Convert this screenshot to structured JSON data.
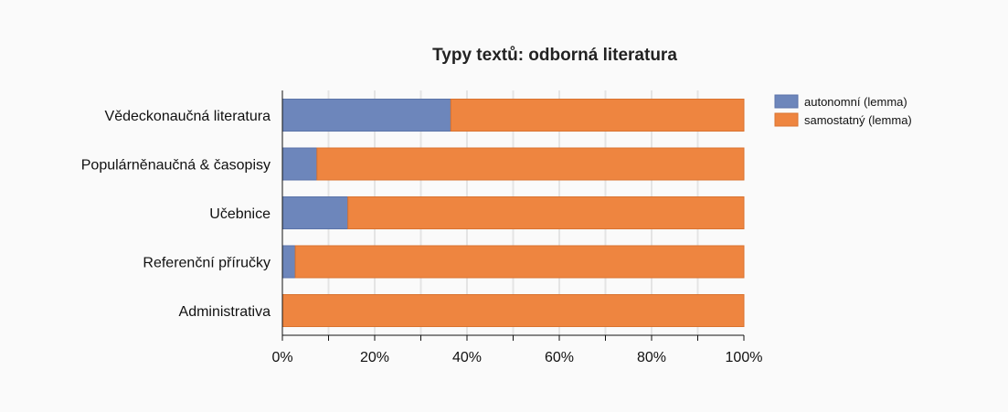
{
  "chart_data": {
    "type": "bar",
    "orientation": "horizontal",
    "stacked": true,
    "title": "Typy textů: odborná literatura",
    "categories": [
      "Vědeckonaučná literatura",
      "Populárněnaučná & časopisy",
      "Učebnice",
      "Referenční příručky",
      "Administrativa"
    ],
    "series": [
      {
        "name": "autonomní (lemma)",
        "color": "#6d86bb",
        "values": [
          36.5,
          7.5,
          14.2,
          2.8,
          0
        ]
      },
      {
        "name": "samostatný (lemma)",
        "color": "#ee8540",
        "values": [
          63.5,
          92.5,
          85.8,
          97.2,
          100
        ]
      }
    ],
    "xlim": [
      0,
      100
    ],
    "x_ticks": [
      "0%",
      "20%",
      "40%",
      "60%",
      "80%",
      "100%"
    ],
    "x_tick_values": [
      0,
      20,
      40,
      60,
      80,
      100
    ],
    "grid": true,
    "legend_position": "top-right"
  }
}
